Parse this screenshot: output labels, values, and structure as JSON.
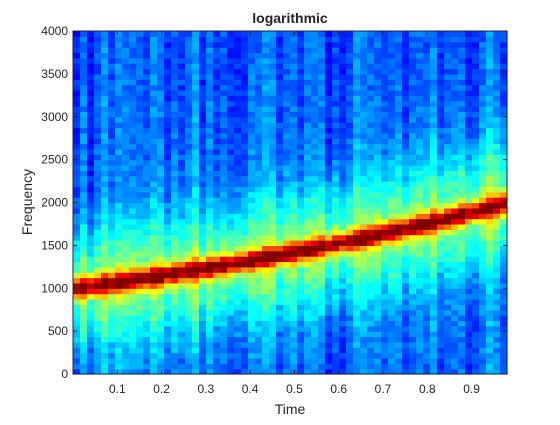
{
  "chart_data": {
    "type": "heatmap",
    "title": "logarithmic",
    "xlabel": "Time",
    "ylabel": "Frequency",
    "xlim": [
      0,
      0.98
    ],
    "ylim": [
      0,
      4000
    ],
    "x_ticks": [
      0.1,
      0.2,
      0.3,
      0.4,
      0.5,
      0.6,
      0.7,
      0.8,
      0.9
    ],
    "x_tick_labels": [
      "0.1",
      "0.2",
      "0.3",
      "0.4",
      "0.5",
      "0.6",
      "0.7",
      "0.8",
      "0.9"
    ],
    "y_ticks": [
      0,
      500,
      1000,
      1500,
      2000,
      2500,
      3000,
      3500,
      4000
    ],
    "y_tick_labels": [
      "0",
      "500",
      "1000",
      "1500",
      "2000",
      "2500",
      "3000",
      "3500",
      "4000"
    ],
    "colormap": "jet",
    "chirp": {
      "method": "logarithmic",
      "t": [
        0,
        0.98
      ],
      "f": [
        1000,
        2000
      ],
      "ridge_points": [
        {
          "time": 0.0,
          "frequency": 1000
        },
        {
          "time": 0.2,
          "frequency": 1150
        },
        {
          "time": 0.4,
          "frequency": 1320
        },
        {
          "time": 0.6,
          "frequency": 1520
        },
        {
          "time": 0.8,
          "frequency": 1740
        },
        {
          "time": 0.98,
          "frequency": 2000
        }
      ]
    }
  }
}
